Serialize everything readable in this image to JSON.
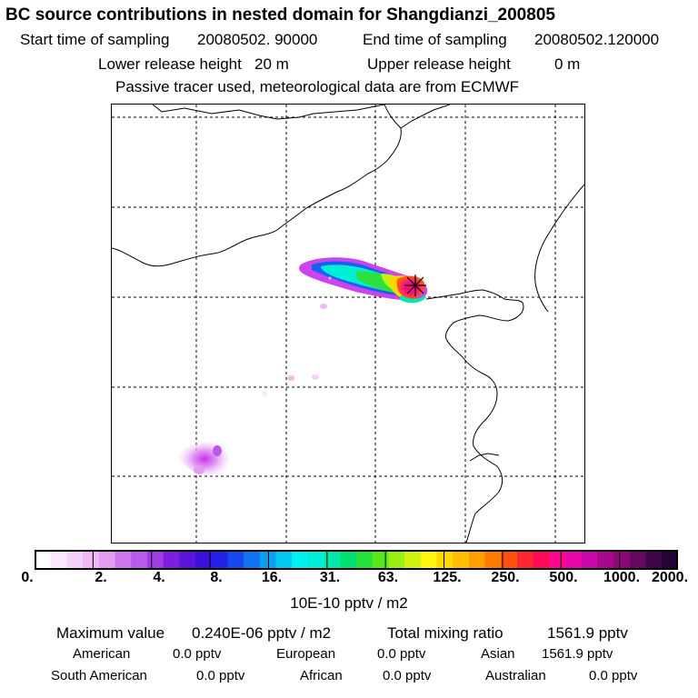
{
  "header": {
    "title": "BC  source contributions in nested domain for Shangdianzi_200805",
    "start_label": "Start time of sampling",
    "start_value": "20080502. 90000",
    "end_label": "End time of sampling",
    "end_value": "20080502.120000",
    "lower_label": "Lower release height",
    "lower_value": "20 m",
    "upper_label": "Upper release height",
    "upper_value": "0 m",
    "info": "Passive tracer used, meteorological data are from ECMWF"
  },
  "map": {
    "receptor": "Shangdianzi",
    "receptor_marker_icon": "star-marker-icon",
    "gridlines": "dashed"
  },
  "colorbar": {
    "tick_labels": [
      "0.",
      "2.",
      "4.",
      "8.",
      "16.",
      "31.",
      "63.",
      "125.",
      "250.",
      "500.",
      "1000.",
      "2000."
    ],
    "colors": [
      "#ffffff",
      "#fbe6fb",
      "#f5d0f8",
      "#f0b8f5",
      "#e29cf2",
      "#cc77ee",
      "#b85aeb",
      "#a23de6",
      "#7d1ee0",
      "#5b14dc",
      "#3b10da",
      "#2222e8",
      "#1a48ef",
      "#1272f2",
      "#0aa0f2",
      "#00c8ef",
      "#00f0f0",
      "#00eed7",
      "#00e8a8",
      "#00e070",
      "#25e23a",
      "#58e61c",
      "#9aee10",
      "#cff210",
      "#fff510",
      "#ffd800",
      "#ffbc00",
      "#ff9e00",
      "#ff7a00",
      "#ff5010",
      "#ff2830",
      "#ff0a58",
      "#ff0890",
      "#e808a8",
      "#c808a8",
      "#a8088c",
      "#8a0878",
      "#640860",
      "#40064a",
      "#220436"
    ],
    "unit_label": "10E-10 pptv / m2"
  },
  "stats": {
    "max_label": "Maximum value",
    "max_value": "0.240E-06 pptv / m2",
    "total_label": "Total mixing ratio",
    "total_value": "1561.9 pptv",
    "regions": [
      {
        "name": "American",
        "value": "0.0 pptv"
      },
      {
        "name": "European",
        "value": "0.0 pptv"
      },
      {
        "name": "Asian",
        "value": "1561.9 pptv"
      },
      {
        "name": "South American",
        "value": "0.0 pptv"
      },
      {
        "name": "African",
        "value": "0.0 pptv"
      },
      {
        "name": "Australian",
        "value": "0.0 pptv"
      }
    ]
  }
}
